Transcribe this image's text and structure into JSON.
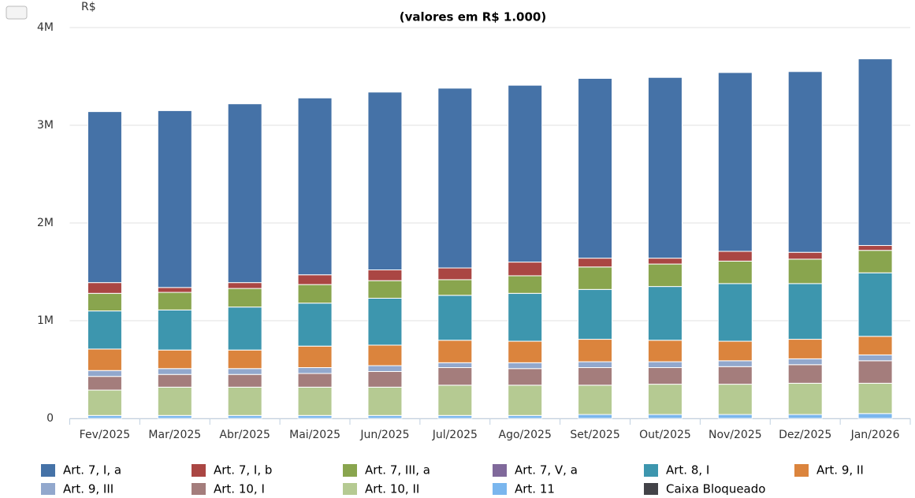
{
  "chart_data": {
    "type": "stacked_bar",
    "title": "(valores em R$ 1.000)",
    "y_label": "R$",
    "categories": [
      "Fev/2025",
      "Mar/2025",
      "Abr/2025",
      "Mai/2025",
      "Jun/2025",
      "Jul/2025",
      "Ago/2025",
      "Set/2025",
      "Out/2025",
      "Nov/2025",
      "Dez/2025",
      "Jan/2026"
    ],
    "ylim": [
      0,
      4000000
    ],
    "yticks": [
      0,
      {
        "value": 1000000,
        "label": "1M"
      },
      {
        "value": 2000000,
        "label": "2M"
      },
      {
        "value": 3000000,
        "label": "3M"
      },
      {
        "value": 4000000,
        "label": "4M"
      }
    ],
    "grid": true,
    "legend": "bottom",
    "series": [
      {
        "name": "Art. 7, I, a",
        "color": "#4572a7",
        "values": [
          1750000,
          1810000,
          1830000,
          1810000,
          1820000,
          1840000,
          1810000,
          1840000,
          1850000,
          1830000,
          1850000,
          1910000
        ]
      },
      {
        "name": "Art. 7, I, b",
        "color": "#aa4643",
        "values": [
          110000,
          50000,
          60000,
          100000,
          110000,
          120000,
          140000,
          90000,
          60000,
          100000,
          70000,
          50000
        ]
      },
      {
        "name": "Art. 7, III, a",
        "color": "#89a54e",
        "values": [
          180000,
          180000,
          190000,
          190000,
          180000,
          160000,
          180000,
          230000,
          230000,
          230000,
          250000,
          230000
        ]
      },
      {
        "name": "Art. 7, V, a",
        "color": "#80699b",
        "values": [
          0,
          0,
          0,
          0,
          0,
          0,
          0,
          0,
          0,
          0,
          0,
          0
        ]
      },
      {
        "name": "Art. 8, I",
        "color": "#3d96ae",
        "values": [
          390000,
          410000,
          440000,
          440000,
          480000,
          460000,
          490000,
          510000,
          550000,
          590000,
          570000,
          650000
        ]
      },
      {
        "name": "Art. 9, II",
        "color": "#db843d",
        "values": [
          220000,
          190000,
          190000,
          220000,
          210000,
          230000,
          220000,
          230000,
          220000,
          200000,
          200000,
          190000
        ]
      },
      {
        "name": "Art. 9, III",
        "color": "#92a8cd",
        "values": [
          60000,
          60000,
          60000,
          60000,
          60000,
          50000,
          60000,
          60000,
          60000,
          60000,
          60000,
          60000
        ]
      },
      {
        "name": "Art. 10, I",
        "color": "#a47d7c",
        "values": [
          140000,
          130000,
          130000,
          140000,
          160000,
          180000,
          170000,
          180000,
          170000,
          180000,
          190000,
          230000
        ]
      },
      {
        "name": "Art. 10, II",
        "color": "#b5ca92",
        "values": [
          260000,
          290000,
          290000,
          290000,
          290000,
          310000,
          310000,
          300000,
          310000,
          310000,
          320000,
          310000
        ]
      },
      {
        "name": "Art. 11",
        "color": "#7ab6ee",
        "values": [
          30000,
          30000,
          30000,
          30000,
          30000,
          30000,
          30000,
          40000,
          40000,
          40000,
          40000,
          50000
        ]
      },
      {
        "name": "Caixa Bloqueado",
        "color": "#434348",
        "values": [
          0,
          0,
          0,
          0,
          0,
          0,
          0,
          0,
          0,
          0,
          0,
          0
        ]
      }
    ]
  }
}
